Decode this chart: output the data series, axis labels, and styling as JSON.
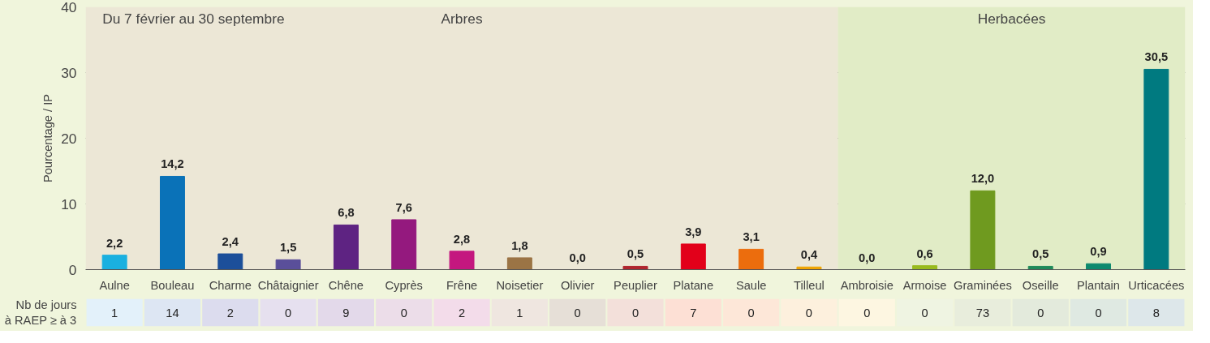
{
  "chart_data": [
    {
      "type": "bar",
      "ylabel": "Pourcentage / IP",
      "categories": [
        "Aulne",
        "Bouleau",
        "Charme",
        "Châtaignier",
        "Chêne",
        "Cyprès",
        "Frêne",
        "Noisetier",
        "Olivier",
        "Peuplier",
        "Platane",
        "Saule",
        "Tilleul",
        "Ambroisie",
        "Armoise",
        "Graminées",
        "Oseille",
        "Plantain",
        "Urticacées"
      ],
      "values": [
        2.2,
        14.2,
        2.4,
        1.5,
        6.8,
        7.6,
        2.8,
        1.8,
        0.0,
        0.5,
        3.9,
        3.1,
        0.4,
        0.0,
        0.6,
        12.0,
        0.5,
        0.9,
        30.5
      ],
      "value_labels": [
        "2,2",
        "14,2",
        "2,4",
        "1,5",
        "6,8",
        "7,6",
        "2,8",
        "1,8",
        "0,0",
        "0,5",
        "3,9",
        "3,1",
        "0,4",
        "0,0",
        "0,6",
        "12,0",
        "0,5",
        "0,9",
        "30,5"
      ],
      "colors": [
        "#1ab0e0",
        "#0a72b8",
        "#1c4f9a",
        "#5a4f9a",
        "#5e2382",
        "#94197e",
        "#c4177f",
        "#9b7445",
        "#8a8a8a",
        "#b0252f",
        "#e2001a",
        "#ec6d0d",
        "#f0a400",
        "#d9b800",
        "#99bb1e",
        "#6f9a1f",
        "#1f8a5a",
        "#0d8a6e",
        "#007a80"
      ],
      "ylim": [
        0,
        40
      ],
      "yticks": [
        0,
        10,
        20,
        30,
        40
      ],
      "grid": "y",
      "bands": [
        {
          "axis": "x",
          "from": "Aulne",
          "to": "Tilleul",
          "label": "Arbres",
          "color": "#ece7d6"
        },
        {
          "axis": "x",
          "from": "Ambroisie",
          "to": "Urticacées",
          "label": "Herbacées",
          "color": "#e1ecc6"
        }
      ],
      "annotations": [
        "Du 7 février au 30 septembre"
      ]
    },
    {
      "type": "heatmap",
      "tick_labels": "y",
      "categories": [
        null,
        null,
        null,
        null,
        null,
        null,
        null,
        null,
        null,
        null,
        null,
        null,
        null,
        null,
        null,
        null,
        null,
        null,
        null
      ],
      "y_categories": [
        "Nb de jours à RAEP ≥ à 3"
      ],
      "cells": [
        [
          1,
          14,
          2,
          0,
          9,
          0,
          2,
          1,
          0,
          0,
          7,
          0,
          0,
          0,
          0,
          73,
          0,
          0,
          8
        ]
      ],
      "data_labels": true,
      "colors": [
        "#e3f1fa",
        "#dde6f3",
        "#dcdcee",
        "#e6e0ef",
        "#e3d9ea",
        "#ecdde9",
        "#f3dcea",
        "#efe6e0",
        "#e6dfd7",
        "#f3e0da",
        "#fde0d5",
        "#fde7d8",
        "#fdf0dd",
        "#fdf6e1",
        "#eff4e2",
        "#e8eddc",
        "#e3eadc",
        "#dfe9e2",
        "#dde7ea"
      ]
    }
  ]
}
